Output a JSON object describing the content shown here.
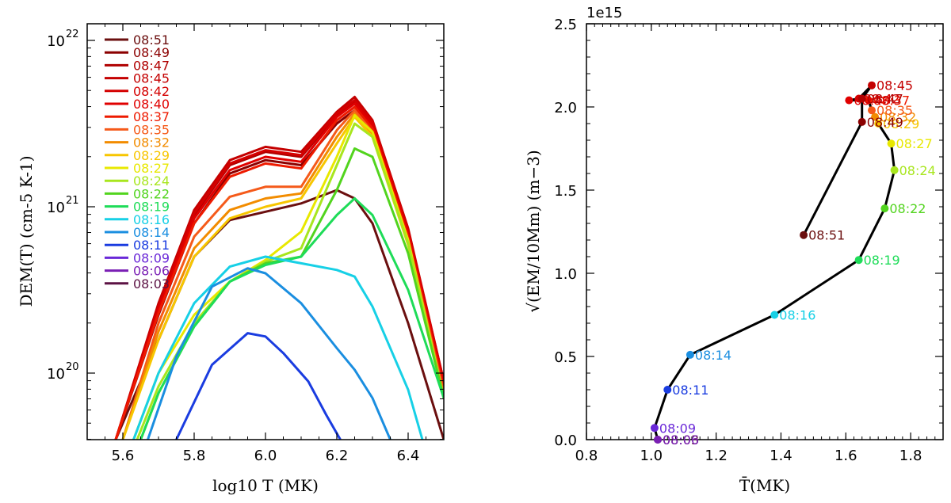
{
  "chart_data": [
    {
      "type": "line",
      "title": "",
      "xlabel": "log10 T (MK)",
      "ylabel": "DEM(T) (cm-5 K-1)",
      "xlim": [
        5.5,
        6.5
      ],
      "ylim_log10": [
        19.6,
        22.1
      ],
      "y_scale": "log",
      "x_ticks": [
        "5.6",
        "5.8",
        "6.0",
        "6.2",
        "6.4"
      ],
      "y_ticks": [
        {
          "base": "10",
          "exp": "20"
        },
        {
          "base": "10",
          "exp": "21"
        },
        {
          "base": "10",
          "exp": "22"
        }
      ],
      "legend_position": "top-left",
      "series": [
        {
          "name": "08:51",
          "color": "#6b0f0f",
          "x": [
            5.58,
            5.7,
            5.8,
            5.9,
            6.0,
            6.1,
            6.2,
            6.25,
            6.3,
            6.4,
            6.5
          ],
          "log10y": [
            19.6,
            20.2,
            20.7,
            20.92,
            20.97,
            21.02,
            21.1,
            21.05,
            20.9,
            20.3,
            19.6
          ]
        },
        {
          "name": "08:49",
          "color": "#8b0000",
          "x": [
            5.58,
            5.7,
            5.8,
            5.9,
            6.0,
            6.1,
            6.2,
            6.25,
            6.3,
            6.4,
            6.5
          ],
          "log10y": [
            19.6,
            20.35,
            20.9,
            21.2,
            21.28,
            21.25,
            21.5,
            21.58,
            21.45,
            20.8,
            19.9
          ]
        },
        {
          "name": "08:47",
          "color": "#b00000",
          "x": [
            5.58,
            5.7,
            5.8,
            5.9,
            6.0,
            6.1,
            6.2,
            6.25,
            6.3,
            6.4,
            6.5
          ],
          "log10y": [
            19.6,
            20.4,
            20.95,
            21.25,
            21.33,
            21.3,
            21.55,
            21.63,
            21.5,
            20.85,
            19.95
          ]
        },
        {
          "name": "08:45",
          "color": "#c40000",
          "x": [
            5.58,
            5.7,
            5.8,
            5.9,
            6.0,
            6.1,
            6.2,
            6.25,
            6.3,
            6.4,
            6.5
          ],
          "log10y": [
            19.6,
            20.42,
            20.98,
            21.28,
            21.36,
            21.33,
            21.57,
            21.66,
            21.52,
            20.87,
            19.95
          ]
        },
        {
          "name": "08:42",
          "color": "#d40000",
          "x": [
            5.58,
            5.7,
            5.8,
            5.9,
            6.0,
            6.1,
            6.2,
            6.25,
            6.3,
            6.4,
            6.5
          ],
          "log10y": [
            19.6,
            20.4,
            20.96,
            21.26,
            21.34,
            21.31,
            21.56,
            21.64,
            21.51,
            20.86,
            19.95
          ]
        },
        {
          "name": "08:40",
          "color": "#e00000",
          "x": [
            5.58,
            5.7,
            5.8,
            5.9,
            6.0,
            6.1,
            6.2,
            6.25,
            6.3,
            6.4,
            6.5
          ],
          "log10y": [
            19.6,
            20.38,
            20.93,
            21.22,
            21.3,
            21.27,
            21.54,
            21.62,
            21.49,
            20.84,
            19.93
          ]
        },
        {
          "name": "08:37",
          "color": "#ee1a00",
          "x": [
            5.58,
            5.7,
            5.8,
            5.9,
            6.0,
            6.1,
            6.2,
            6.25,
            6.3,
            6.4,
            6.5
          ],
          "log10y": [
            19.6,
            20.36,
            20.9,
            21.18,
            21.26,
            21.23,
            21.52,
            21.6,
            21.47,
            20.82,
            19.9
          ]
        },
        {
          "name": "08:35",
          "color": "#f55a1a",
          "x": [
            5.6,
            5.7,
            5.8,
            5.9,
            6.0,
            6.1,
            6.2,
            6.25,
            6.3,
            6.4,
            6.5
          ],
          "log10y": [
            19.6,
            20.3,
            20.82,
            21.06,
            21.12,
            21.12,
            21.46,
            21.58,
            21.45,
            20.8,
            19.88
          ]
        },
        {
          "name": "08:32",
          "color": "#f28c00",
          "x": [
            5.6,
            5.7,
            5.8,
            5.9,
            6.0,
            6.1,
            6.2,
            6.25,
            6.3,
            6.4,
            6.5
          ],
          "log10y": [
            19.6,
            20.25,
            20.75,
            20.98,
            21.05,
            21.08,
            21.42,
            21.56,
            21.43,
            20.78,
            19.86
          ]
        },
        {
          "name": "08:29",
          "color": "#f7c600",
          "x": [
            5.6,
            5.7,
            5.8,
            5.9,
            6.0,
            6.1,
            6.2,
            6.25,
            6.3,
            6.4,
            6.5
          ],
          "log10y": [
            19.6,
            20.2,
            20.7,
            20.93,
            21.0,
            21.05,
            21.38,
            21.54,
            21.42,
            20.77,
            19.85
          ]
        },
        {
          "name": "08:27",
          "color": "#e8e800",
          "x": [
            5.63,
            5.7,
            5.8,
            5.9,
            6.0,
            6.1,
            6.2,
            6.25,
            6.3,
            6.4,
            6.5
          ],
          "log10y": [
            19.6,
            20.0,
            20.35,
            20.55,
            20.68,
            20.85,
            21.3,
            21.55,
            21.45,
            20.8,
            19.85
          ]
        },
        {
          "name": "08:24",
          "color": "#a8e61e",
          "x": [
            5.64,
            5.7,
            5.8,
            5.9,
            6.0,
            6.1,
            6.2,
            6.25,
            6.3,
            6.4,
            6.5
          ],
          "log10y": [
            19.6,
            19.92,
            20.3,
            20.55,
            20.67,
            20.75,
            21.25,
            21.5,
            21.42,
            20.78,
            19.85
          ]
        },
        {
          "name": "08:22",
          "color": "#52d41e",
          "x": [
            5.65,
            5.7,
            5.8,
            5.9,
            6.0,
            6.1,
            6.2,
            6.25,
            6.3,
            6.4,
            6.5
          ],
          "log10y": [
            19.6,
            19.88,
            20.28,
            20.55,
            20.66,
            20.7,
            21.1,
            21.35,
            21.3,
            20.72,
            19.85
          ]
        },
        {
          "name": "08:19",
          "color": "#1edc58",
          "x": [
            5.65,
            5.7,
            5.8,
            5.9,
            6.0,
            6.1,
            6.2,
            6.25,
            6.3,
            6.4,
            6.5
          ],
          "log10y": [
            19.6,
            19.88,
            20.28,
            20.55,
            20.65,
            20.7,
            20.95,
            21.05,
            20.95,
            20.5,
            19.85
          ]
        },
        {
          "name": "08:16",
          "color": "#17d0e6",
          "x": [
            5.63,
            5.7,
            5.8,
            5.9,
            6.0,
            6.1,
            6.2,
            6.25,
            6.3,
            6.4,
            6.44
          ],
          "log10y": [
            19.6,
            20.0,
            20.42,
            20.64,
            20.7,
            20.66,
            20.62,
            20.58,
            20.4,
            19.9,
            19.6
          ]
        },
        {
          "name": "08:14",
          "color": "#1a8ee0",
          "x": [
            5.67,
            5.75,
            5.85,
            5.95,
            6.0,
            6.1,
            6.2,
            6.25,
            6.3,
            6.35
          ],
          "log10y": [
            19.6,
            20.1,
            20.52,
            20.63,
            20.6,
            20.42,
            20.15,
            20.02,
            19.85,
            19.6
          ]
        },
        {
          "name": "08:11",
          "color": "#1a3ce0",
          "x": [
            5.75,
            5.85,
            5.95,
            6.0,
            6.05,
            6.12,
            6.17,
            6.21
          ],
          "log10y": [
            19.6,
            20.05,
            20.24,
            20.22,
            20.12,
            19.95,
            19.75,
            19.6
          ]
        },
        {
          "name": "08:09",
          "color": "#6a28d8",
          "x": [],
          "log10y": []
        },
        {
          "name": "08:06",
          "color": "#7a1fb4",
          "x": [],
          "log10y": []
        },
        {
          "name": "08:03",
          "color": "#5c1244",
          "x": [],
          "log10y": []
        }
      ]
    },
    {
      "type": "scatter",
      "title": "",
      "xlabel": "T̄(MK)",
      "ylabel": "√(EM/10Mm) (m−3)",
      "offset_label": "1e15",
      "xlim": [
        0.8,
        1.9
      ],
      "ylim": [
        0.0,
        2.5
      ],
      "x_ticks": [
        "0.8",
        "1.0",
        "1.2",
        "1.4",
        "1.6",
        "1.8"
      ],
      "y_ticks": [
        "0.0",
        "0.5",
        "1.0",
        "1.5",
        "2.0",
        "2.5"
      ],
      "connected": true,
      "points": [
        {
          "label": "08:03",
          "x": 1.02,
          "y": 0.0,
          "color": "#5c1244"
        },
        {
          "label": "08:06",
          "x": 1.02,
          "y": 0.0,
          "color": "#7a1fb4"
        },
        {
          "label": "08:09",
          "x": 1.01,
          "y": 0.07,
          "color": "#6a28d8"
        },
        {
          "label": "08:11",
          "x": 1.05,
          "y": 0.3,
          "color": "#1a3ce0"
        },
        {
          "label": "08:14",
          "x": 1.12,
          "y": 0.51,
          "color": "#1a8ee0"
        },
        {
          "label": "08:16",
          "x": 1.38,
          "y": 0.75,
          "color": "#17d0e6"
        },
        {
          "label": "08:19",
          "x": 1.64,
          "y": 1.08,
          "color": "#1edc58"
        },
        {
          "label": "08:22",
          "x": 1.72,
          "y": 1.39,
          "color": "#52d41e"
        },
        {
          "label": "08:24",
          "x": 1.75,
          "y": 1.62,
          "color": "#a8e61e"
        },
        {
          "label": "08:27",
          "x": 1.74,
          "y": 1.78,
          "color": "#e8e800"
        },
        {
          "label": "08:29",
          "x": 1.7,
          "y": 1.9,
          "color": "#f7c600"
        },
        {
          "label": "08:32",
          "x": 1.69,
          "y": 1.94,
          "color": "#f28c00"
        },
        {
          "label": "08:35",
          "x": 1.68,
          "y": 1.98,
          "color": "#f55a1a"
        },
        {
          "label": "08:37",
          "x": 1.67,
          "y": 2.04,
          "color": "#ee1a00"
        },
        {
          "label": "08:40",
          "x": 1.61,
          "y": 2.04,
          "color": "#e00000"
        },
        {
          "label": "08:42",
          "x": 1.64,
          "y": 2.05,
          "color": "#d40000"
        },
        {
          "label": "08:45",
          "x": 1.68,
          "y": 2.13,
          "color": "#c40000"
        },
        {
          "label": "08:47",
          "x": 1.65,
          "y": 2.05,
          "color": "#b00000"
        },
        {
          "label": "08:49",
          "x": 1.65,
          "y": 1.91,
          "color": "#8b0000"
        },
        {
          "label": "08:51",
          "x": 1.47,
          "y": 1.23,
          "color": "#6b0f0f"
        }
      ]
    }
  ]
}
